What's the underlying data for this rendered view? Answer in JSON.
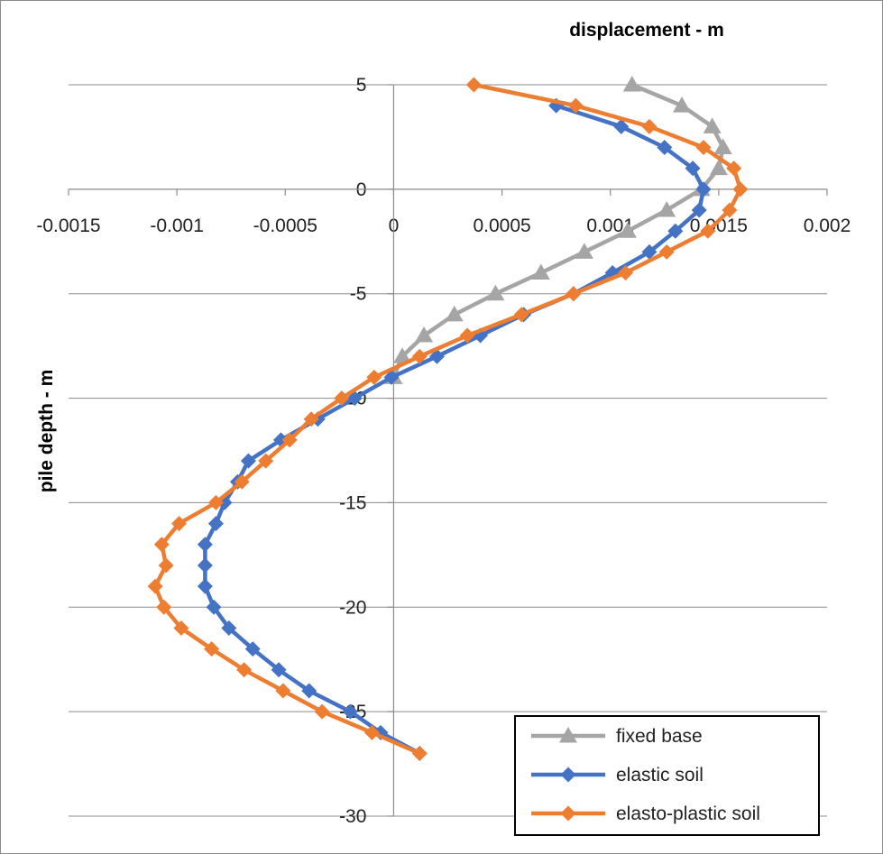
{
  "chart_data": {
    "type": "line",
    "xlabel": "displacement - m",
    "ylabel": "pile depth - m",
    "xlim": [
      -0.0015,
      0.002
    ],
    "ylim": [
      -30,
      5
    ],
    "x_ticks": [
      "-0.0015",
      "-0.001",
      "-0.0005",
      "0",
      "0.0005",
      "0.001",
      "0.0015",
      "0.002"
    ],
    "y_ticks": [
      "5",
      "0",
      "-5",
      "-10",
      "-15",
      "-20",
      "-25",
      "-30"
    ],
    "grid": "horizontal",
    "legend_position": "bottom-right",
    "series": [
      {
        "name": "fixed base",
        "color": "#a5a5a5",
        "marker": "triangle",
        "points": [
          [
            0.0011,
            5
          ],
          [
            0.00133,
            4
          ],
          [
            0.00147,
            3
          ],
          [
            0.00152,
            2
          ],
          [
            0.0015,
            1
          ],
          [
            0.00142,
            0
          ],
          [
            0.00126,
            -1
          ],
          [
            0.00108,
            -2
          ],
          [
            0.00088,
            -3
          ],
          [
            0.00068,
            -4
          ],
          [
            0.00047,
            -5
          ],
          [
            0.00028,
            -6
          ],
          [
            0.00014,
            -7
          ],
          [
            4e-05,
            -8
          ],
          [
            0.0,
            -9
          ]
        ]
      },
      {
        "name": "elastic soil",
        "color": "#4472c4",
        "marker": "diamond",
        "points": [
          [
            0.00075,
            4
          ],
          [
            0.00105,
            3
          ],
          [
            0.00125,
            2
          ],
          [
            0.00138,
            1
          ],
          [
            0.00143,
            0
          ],
          [
            0.00141,
            -1
          ],
          [
            0.0013,
            -2
          ],
          [
            0.00118,
            -3
          ],
          [
            0.00101,
            -4
          ],
          [
            0.00083,
            -5
          ],
          [
            0.0006,
            -6
          ],
          [
            0.0004,
            -7
          ],
          [
            0.0002,
            -8
          ],
          [
            -1e-05,
            -9
          ],
          [
            -0.00018,
            -10
          ],
          [
            -0.00035,
            -11
          ],
          [
            -0.00052,
            -12
          ],
          [
            -0.00067,
            -13
          ],
          [
            -0.00072,
            -14
          ],
          [
            -0.00078,
            -15
          ],
          [
            -0.00082,
            -16
          ],
          [
            -0.00087,
            -17
          ],
          [
            -0.00087,
            -18
          ],
          [
            -0.00087,
            -19
          ],
          [
            -0.00083,
            -20
          ],
          [
            -0.00076,
            -21
          ],
          [
            -0.00065,
            -22
          ],
          [
            -0.00053,
            -23
          ],
          [
            -0.00039,
            -24
          ],
          [
            -0.0002,
            -25
          ],
          [
            -6e-05,
            -26
          ],
          [
            0.00012,
            -27
          ]
        ]
      },
      {
        "name": "elasto-plastic soil",
        "color": "#ed7d31",
        "marker": "diamond",
        "points": [
          [
            0.00037,
            5
          ],
          [
            0.00084,
            4
          ],
          [
            0.00118,
            3
          ],
          [
            0.00143,
            2
          ],
          [
            0.00157,
            1
          ],
          [
            0.0016,
            0
          ],
          [
            0.00155,
            -1
          ],
          [
            0.00145,
            -2
          ],
          [
            0.00126,
            -3
          ],
          [
            0.00107,
            -4
          ],
          [
            0.00083,
            -5
          ],
          [
            0.00059,
            -6
          ],
          [
            0.00034,
            -7
          ],
          [
            0.00012,
            -8
          ],
          [
            -9e-05,
            -9
          ],
          [
            -0.00024,
            -10
          ],
          [
            -0.00038,
            -11
          ],
          [
            -0.00048,
            -12
          ],
          [
            -0.00059,
            -13
          ],
          [
            -0.0007,
            -14
          ],
          [
            -0.00082,
            -15
          ],
          [
            -0.00099,
            -16
          ],
          [
            -0.00107,
            -17
          ],
          [
            -0.00105,
            -18
          ],
          [
            -0.0011,
            -19
          ],
          [
            -0.00106,
            -20
          ],
          [
            -0.00098,
            -21
          ],
          [
            -0.00084,
            -22
          ],
          [
            -0.00069,
            -23
          ],
          [
            -0.00051,
            -24
          ],
          [
            -0.00033,
            -25
          ],
          [
            -0.0001,
            -26
          ],
          [
            0.00012,
            -27
          ]
        ]
      }
    ]
  }
}
